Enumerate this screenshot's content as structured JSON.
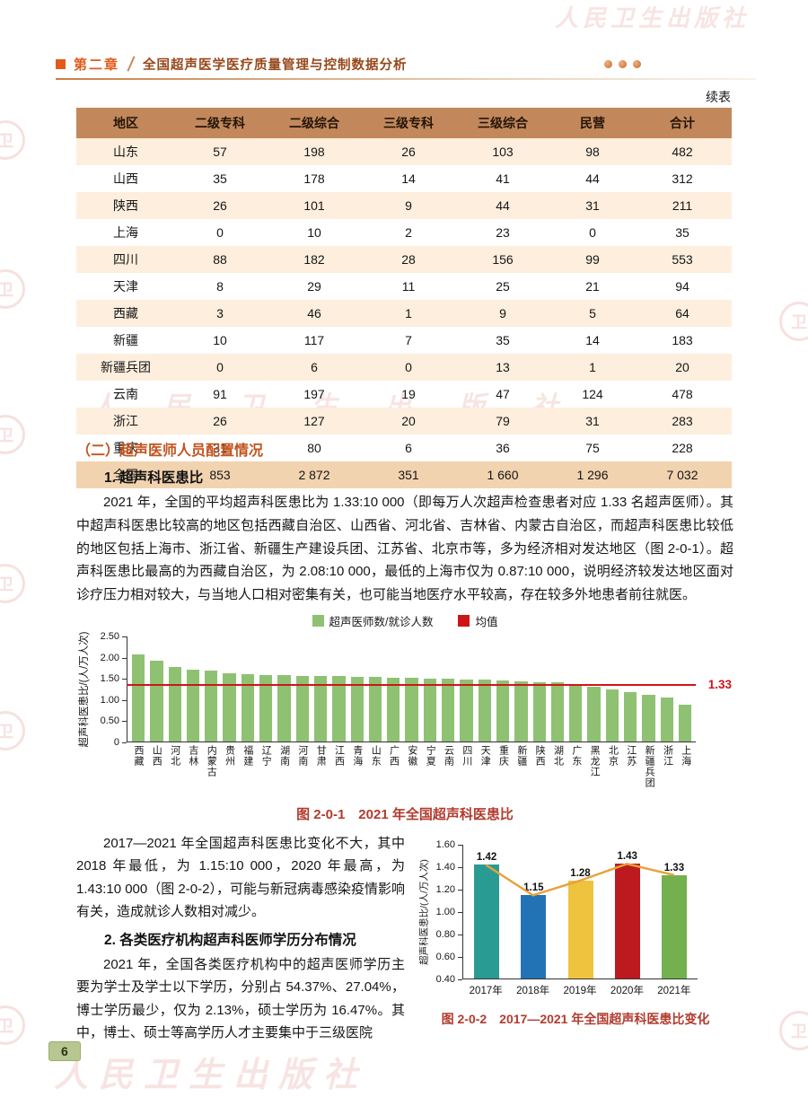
{
  "colors": {
    "accent_orange": "#e25a1a",
    "title_brown": "#97481c",
    "table_header_bg": "#c2885c",
    "row_alt_bg": "#fdeedd",
    "row_total_bg": "#f2d3b0",
    "section_heading": "#c2531d",
    "caption_red": "#b23b2e",
    "watermark_red": "#cc4a3c",
    "page_badge_bg": "#b7c791"
  },
  "watermark": {
    "text": "人民卫生出版社",
    "logo_char": "卫"
  },
  "header": {
    "chapter": "第二章",
    "title": "全国超声医学医疗质量管理与控制数据分析"
  },
  "page_number": "6",
  "table": {
    "continued_label": "续表",
    "columns": [
      "地区",
      "二级专科",
      "二级综合",
      "三级专科",
      "三级综合",
      "民营",
      "合计"
    ],
    "rows": [
      [
        "山东",
        "57",
        "198",
        "26",
        "103",
        "98",
        "482"
      ],
      [
        "山西",
        "35",
        "178",
        "14",
        "41",
        "44",
        "312"
      ],
      [
        "陕西",
        "26",
        "101",
        "9",
        "44",
        "31",
        "211"
      ],
      [
        "上海",
        "0",
        "10",
        "2",
        "23",
        "0",
        "35"
      ],
      [
        "四川",
        "88",
        "182",
        "28",
        "156",
        "99",
        "553"
      ],
      [
        "天津",
        "8",
        "29",
        "11",
        "25",
        "21",
        "94"
      ],
      [
        "西藏",
        "3",
        "46",
        "1",
        "9",
        "5",
        "64"
      ],
      [
        "新疆",
        "10",
        "117",
        "7",
        "35",
        "14",
        "183"
      ],
      [
        "新疆兵团",
        "0",
        "6",
        "0",
        "13",
        "1",
        "20"
      ],
      [
        "云南",
        "91",
        "197",
        "19",
        "47",
        "124",
        "478"
      ],
      [
        "浙江",
        "26",
        "127",
        "20",
        "79",
        "31",
        "283"
      ],
      [
        "重庆",
        "31",
        "80",
        "6",
        "36",
        "75",
        "228"
      ],
      [
        "全国",
        "853",
        "2 872",
        "351",
        "1 660",
        "1 296",
        "7 032"
      ]
    ]
  },
  "section": {
    "heading2": "（二）超声医师人员配置情况",
    "item1_title": "1. 超声科医患比",
    "para1": "2021 年，全国的平均超声科医患比为 1.33:10 000（即每万人次超声检查患者对应 1.33 名超声医师）。其中超声科医患比较高的地区包括西藏自治区、山西省、河北省、吉林省、内蒙古自治区，而超声科医患比较低的地区包括上海市、浙江省、新疆生产建设兵团、江苏省、北京市等，多为经济相对发达地区（图 2-0-1）。超声科医患比最高的为西藏自治区，为 2.08:10 000，最低的上海市仅为 0.87:10 000，说明经济较发达地区面对诊疗压力相对较大，与当地人口相对密集有关，也可能当地医疗水平较高，存在较多外地患者前往就医。",
    "para2": "2017—2021 年全国超声科医患比变化不大，其中 2018 年最低，为 1.15:10 000，2020 年最高，为 1.43:10 000（图 2-0-2），可能与新冠病毒感染疫情影响有关，造成就诊人数相对减少。",
    "item2_title": "2. 各类医疗机构超声科医师学历分布情况",
    "para3": "2021 年，全国各类医疗机构中的超声医师学历主要为学士及学士以下学历，分别占 54.37%、27.04%，博士学历最少，仅为 2.13%，硕士学历为 16.47%。其中，博士、硕士等高学历人才主要集中于三级医院"
  },
  "chart_data": [
    {
      "id": "fig-2-0-1",
      "type": "bar",
      "title": "图 2-0-1　2021 年全国超声科医患比",
      "legend": [
        "超声医师数/就诊人数",
        "均值"
      ],
      "ylabel": "超声科医患比/(人/万人次)",
      "ylim": [
        0,
        2.5
      ],
      "yticks": [
        "0",
        "0.50",
        "1.00",
        "1.50",
        "2.00",
        "2.50"
      ],
      "mean": 1.33,
      "mean_label": "1.33",
      "bar_color": "#8fc172",
      "mean_color": "#cf1418",
      "grid": false,
      "legend_position": "top",
      "categories": [
        "西藏",
        "山西",
        "河北",
        "吉林",
        "内蒙古",
        "贵州",
        "福建",
        "辽宁",
        "湖南",
        "河南",
        "甘肃",
        "江西",
        "青海",
        "山东",
        "广西",
        "安徽",
        "宁夏",
        "云南",
        "四川",
        "天津",
        "重庆",
        "新疆",
        "陕西",
        "湖北",
        "广东",
        "黑龙江",
        "北京",
        "江苏",
        "新疆兵团",
        "浙江",
        "上海"
      ],
      "values": [
        2.08,
        1.93,
        1.78,
        1.72,
        1.68,
        1.63,
        1.61,
        1.59,
        1.58,
        1.57,
        1.56,
        1.55,
        1.54,
        1.53,
        1.52,
        1.51,
        1.5,
        1.49,
        1.48,
        1.47,
        1.46,
        1.44,
        1.42,
        1.4,
        1.32,
        1.3,
        1.24,
        1.18,
        1.12,
        1.05,
        0.87
      ]
    },
    {
      "id": "fig-2-0-2",
      "type": "bar",
      "title": "图 2-0-2　2017—2021 年全国超声科医患比变化",
      "ylabel": "超声科医患比/(人/万人次)",
      "ylim": [
        0.4,
        1.6
      ],
      "yticks": [
        "0.40",
        "0.60",
        "0.80",
        "1.00",
        "1.20",
        "1.40",
        "1.60"
      ],
      "categories": [
        "2017年",
        "2018年",
        "2019年",
        "2020年",
        "2021年"
      ],
      "values": [
        1.42,
        1.15,
        1.28,
        1.43,
        1.33
      ],
      "bar_colors": [
        "#2a9b93",
        "#2273b5",
        "#efc33e",
        "#bd1a20",
        "#72b14e"
      ],
      "line_color": "#e6a23c",
      "grid": false
    }
  ]
}
